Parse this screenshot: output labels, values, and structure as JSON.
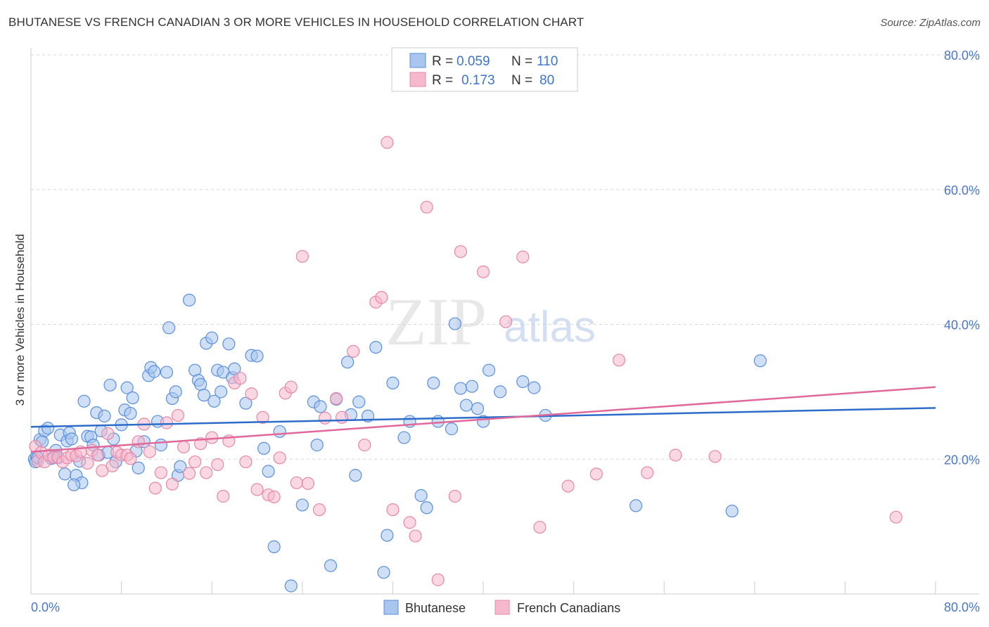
{
  "title": "BHUTANESE VS FRENCH CANADIAN 3 OR MORE VEHICLES IN HOUSEHOLD CORRELATION CHART",
  "source": "Source: ZipAtlas.com",
  "watermark": {
    "zip": "ZIP",
    "atlas": "atlas"
  },
  "colors": {
    "blue_fill": "#a8c6ee",
    "blue_stroke": "#5a8fdb",
    "blue_line": "#2e6cc9",
    "pink_fill": "#f6b8cc",
    "pink_stroke": "#e887a6",
    "pink_line": "#e0689a",
    "grid": "#d8d8d8",
    "tick_text": "#4a78c8"
  },
  "legend": {
    "rows": [
      {
        "r_label": "R =",
        "r_value": "0.059",
        "n_label": "N =",
        "n_value": "110"
      },
      {
        "r_label": "R =",
        "r_value": "0.173",
        "n_label": "N =",
        "n_value": "80"
      }
    ]
  },
  "chart_data": {
    "type": "scatter",
    "title": "BHUTANESE VS FRENCH CANADIAN 3 OR MORE VEHICLES IN HOUSEHOLD CORRELATION CHART",
    "xlabel": "",
    "ylabel": "3 or more Vehicles in Household",
    "xlim": [
      0,
      80
    ],
    "ylim": [
      0,
      80
    ],
    "x_tick_labels": [
      "0.0%",
      "80.0%"
    ],
    "y_ticks": [
      20,
      40,
      60,
      80
    ],
    "y_tick_labels": [
      "20.0%",
      "40.0%",
      "60.0%",
      "80.0%"
    ],
    "grid": true,
    "legend_position": "top-center",
    "series": [
      {
        "name": "Bhutanese",
        "r": 0.059,
        "n": 110,
        "trend": {
          "x": [
            0,
            80
          ],
          "y": [
            24.8,
            27.6
          ]
        },
        "points": [
          [
            0.3,
            20.0
          ],
          [
            0.4,
            19.6
          ],
          [
            0.5,
            20.4
          ],
          [
            0.6,
            20.2
          ],
          [
            0.8,
            22.9
          ],
          [
            1.0,
            22.6
          ],
          [
            1.2,
            24.2
          ],
          [
            1.5,
            24.6
          ],
          [
            1.8,
            20.1
          ],
          [
            2.0,
            20.3
          ],
          [
            2.2,
            21.3
          ],
          [
            2.4,
            20.2
          ],
          [
            2.6,
            23.6
          ],
          [
            3.0,
            17.8
          ],
          [
            3.2,
            22.7
          ],
          [
            3.4,
            23.9
          ],
          [
            3.6,
            23.0
          ],
          [
            4.0,
            17.6
          ],
          [
            4.3,
            19.7
          ],
          [
            4.5,
            16.5
          ],
          [
            4.7,
            28.6
          ],
          [
            5.0,
            23.4
          ],
          [
            5.3,
            23.3
          ],
          [
            5.5,
            22.1
          ],
          [
            5.8,
            26.9
          ],
          [
            6.0,
            20.6
          ],
          [
            6.2,
            24.2
          ],
          [
            6.5,
            26.4
          ],
          [
            7.0,
            31.0
          ],
          [
            7.3,
            23.0
          ],
          [
            7.5,
            19.6
          ],
          [
            8.0,
            25.1
          ],
          [
            8.3,
            27.3
          ],
          [
            8.5,
            30.6
          ],
          [
            8.8,
            26.8
          ],
          [
            9.0,
            29.1
          ],
          [
            9.3,
            21.2
          ],
          [
            9.5,
            18.7
          ],
          [
            10.0,
            22.6
          ],
          [
            10.4,
            32.4
          ],
          [
            10.6,
            33.6
          ],
          [
            10.9,
            33.0
          ],
          [
            11.2,
            25.6
          ],
          [
            11.5,
            22.1
          ],
          [
            12.0,
            32.9
          ],
          [
            12.2,
            39.5
          ],
          [
            12.5,
            29.0
          ],
          [
            12.8,
            30.0
          ],
          [
            13.0,
            17.6
          ],
          [
            13.2,
            18.9
          ],
          [
            14.0,
            43.6
          ],
          [
            14.5,
            33.2
          ],
          [
            14.8,
            31.7
          ],
          [
            15.0,
            31.1
          ],
          [
            15.5,
            37.2
          ],
          [
            16.0,
            38.0
          ],
          [
            16.2,
            28.6
          ],
          [
            16.5,
            33.2
          ],
          [
            16.8,
            30.0
          ],
          [
            17.0,
            32.9
          ],
          [
            17.5,
            37.1
          ],
          [
            17.8,
            32.1
          ],
          [
            18.0,
            33.4
          ],
          [
            19.0,
            28.3
          ],
          [
            19.5,
            35.4
          ],
          [
            20.0,
            35.3
          ],
          [
            20.6,
            21.6
          ],
          [
            21.0,
            18.2
          ],
          [
            21.5,
            7.0
          ],
          [
            22.0,
            24.1
          ],
          [
            23.0,
            1.2
          ],
          [
            24.0,
            13.2
          ],
          [
            25.0,
            28.5
          ],
          [
            25.3,
            22.1
          ],
          [
            25.6,
            27.8
          ],
          [
            26.5,
            4.2
          ],
          [
            27.0,
            28.9
          ],
          [
            28.0,
            34.4
          ],
          [
            28.3,
            26.6
          ],
          [
            28.7,
            17.6
          ],
          [
            29.0,
            28.5
          ],
          [
            29.8,
            26.4
          ],
          [
            30.5,
            36.6
          ],
          [
            31.5,
            8.7
          ],
          [
            32.0,
            31.3
          ],
          [
            33.0,
            23.2
          ],
          [
            33.5,
            25.6
          ],
          [
            34.5,
            14.6
          ],
          [
            35.0,
            12.8
          ],
          [
            35.6,
            31.3
          ],
          [
            36.0,
            25.6
          ],
          [
            37.2,
            24.5
          ],
          [
            37.5,
            40.1
          ],
          [
            38.0,
            30.5
          ],
          [
            38.5,
            28.0
          ],
          [
            39.0,
            30.8
          ],
          [
            39.5,
            27.5
          ],
          [
            40.0,
            25.6
          ],
          [
            40.5,
            33.2
          ],
          [
            41.5,
            30.0
          ],
          [
            43.5,
            31.5
          ],
          [
            44.5,
            30.6
          ],
          [
            45.5,
            26.5
          ],
          [
            53.5,
            13.1
          ],
          [
            62.0,
            12.3
          ],
          [
            64.5,
            34.6
          ],
          [
            3.8,
            16.2
          ],
          [
            6.8,
            21.0
          ],
          [
            15.3,
            29.5
          ],
          [
            31.2,
            3.2
          ]
        ]
      },
      {
        "name": "French Canadians",
        "r": 0.173,
        "n": 80,
        "trend": {
          "x": [
            0,
            80
          ],
          "y": [
            21.1,
            30.7
          ]
        },
        "points": [
          [
            0.4,
            21.9
          ],
          [
            0.6,
            19.7
          ],
          [
            0.9,
            21.0
          ],
          [
            1.2,
            19.6
          ],
          [
            1.6,
            20.6
          ],
          [
            2.0,
            20.2
          ],
          [
            2.4,
            20.3
          ],
          [
            2.8,
            19.6
          ],
          [
            3.2,
            20.2
          ],
          [
            3.6,
            20.6
          ],
          [
            4.0,
            20.5
          ],
          [
            4.4,
            21.1
          ],
          [
            5.0,
            19.4
          ],
          [
            5.4,
            21.3
          ],
          [
            5.9,
            20.6
          ],
          [
            6.3,
            18.3
          ],
          [
            6.8,
            23.8
          ],
          [
            7.2,
            19.0
          ],
          [
            7.6,
            21.0
          ],
          [
            8.0,
            20.6
          ],
          [
            8.5,
            20.6
          ],
          [
            8.8,
            20.1
          ],
          [
            9.5,
            22.6
          ],
          [
            10.0,
            25.2
          ],
          [
            10.5,
            21.1
          ],
          [
            11.0,
            15.7
          ],
          [
            11.5,
            18.0
          ],
          [
            12.0,
            25.4
          ],
          [
            12.5,
            16.3
          ],
          [
            13.0,
            26.5
          ],
          [
            13.5,
            21.8
          ],
          [
            14.0,
            17.9
          ],
          [
            14.5,
            19.6
          ],
          [
            15.0,
            22.3
          ],
          [
            15.5,
            18.0
          ],
          [
            16.0,
            23.2
          ],
          [
            16.5,
            19.2
          ],
          [
            17.0,
            14.5
          ],
          [
            17.5,
            22.7
          ],
          [
            18.0,
            31.3
          ],
          [
            18.5,
            32.0
          ],
          [
            19.0,
            19.6
          ],
          [
            19.5,
            29.7
          ],
          [
            20.0,
            15.5
          ],
          [
            20.5,
            26.2
          ],
          [
            21.0,
            14.7
          ],
          [
            21.5,
            14.4
          ],
          [
            22.0,
            20.2
          ],
          [
            22.5,
            29.8
          ],
          [
            23.0,
            30.7
          ],
          [
            23.5,
            16.5
          ],
          [
            24.0,
            50.1
          ],
          [
            24.5,
            16.4
          ],
          [
            25.5,
            12.5
          ],
          [
            26.0,
            26.1
          ],
          [
            27.0,
            29.0
          ],
          [
            27.5,
            26.2
          ],
          [
            28.5,
            36.0
          ],
          [
            29.5,
            22.1
          ],
          [
            30.5,
            43.3
          ],
          [
            31.0,
            44.0
          ],
          [
            31.5,
            67.0
          ],
          [
            32.0,
            12.5
          ],
          [
            33.5,
            10.6
          ],
          [
            34.0,
            8.6
          ],
          [
            35.0,
            57.4
          ],
          [
            36.0,
            2.1
          ],
          [
            37.5,
            14.5
          ],
          [
            38.0,
            50.8
          ],
          [
            40.0,
            47.8
          ],
          [
            42.0,
            40.4
          ],
          [
            43.5,
            50.0
          ],
          [
            45.0,
            9.9
          ],
          [
            47.5,
            16.0
          ],
          [
            50.0,
            17.8
          ],
          [
            52.0,
            34.7
          ],
          [
            54.5,
            18.0
          ],
          [
            57.0,
            20.6
          ],
          [
            60.5,
            20.4
          ],
          [
            76.5,
            11.4
          ]
        ]
      }
    ]
  },
  "bottom_legend": [
    {
      "label": "Bhutanese"
    },
    {
      "label": "French Canadians"
    }
  ]
}
